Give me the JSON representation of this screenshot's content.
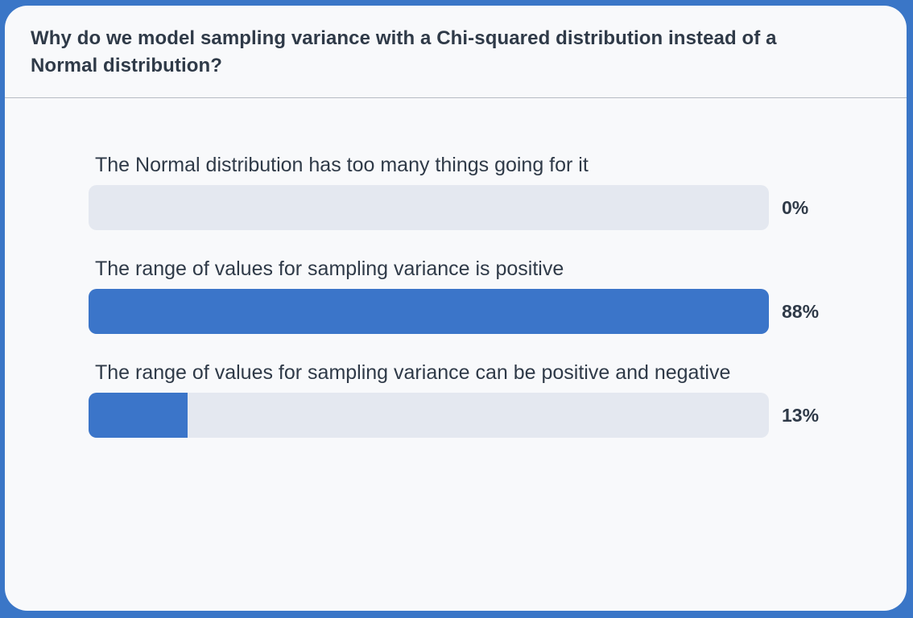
{
  "poll": {
    "question": "Why do we model sampling variance with a Chi-squared distribution instead of a Normal distribution?",
    "options": [
      {
        "label": "The Normal distribution has too many things going for it",
        "percent_text": "0%",
        "fraction": 0.0
      },
      {
        "label": "The range of values for sampling variance is positive",
        "percent_text": "88%",
        "fraction": 1.0
      },
      {
        "label": "The range of values for sampling variance can be positive and negative",
        "percent_text": "13%",
        "fraction": 0.145
      }
    ],
    "colors": {
      "frame": "#3a76c7",
      "card": "#f8f9fb",
      "bar_fill": "#3b75c9",
      "bar_track": "#e4e8f0",
      "text": "#2f3a48"
    }
  }
}
